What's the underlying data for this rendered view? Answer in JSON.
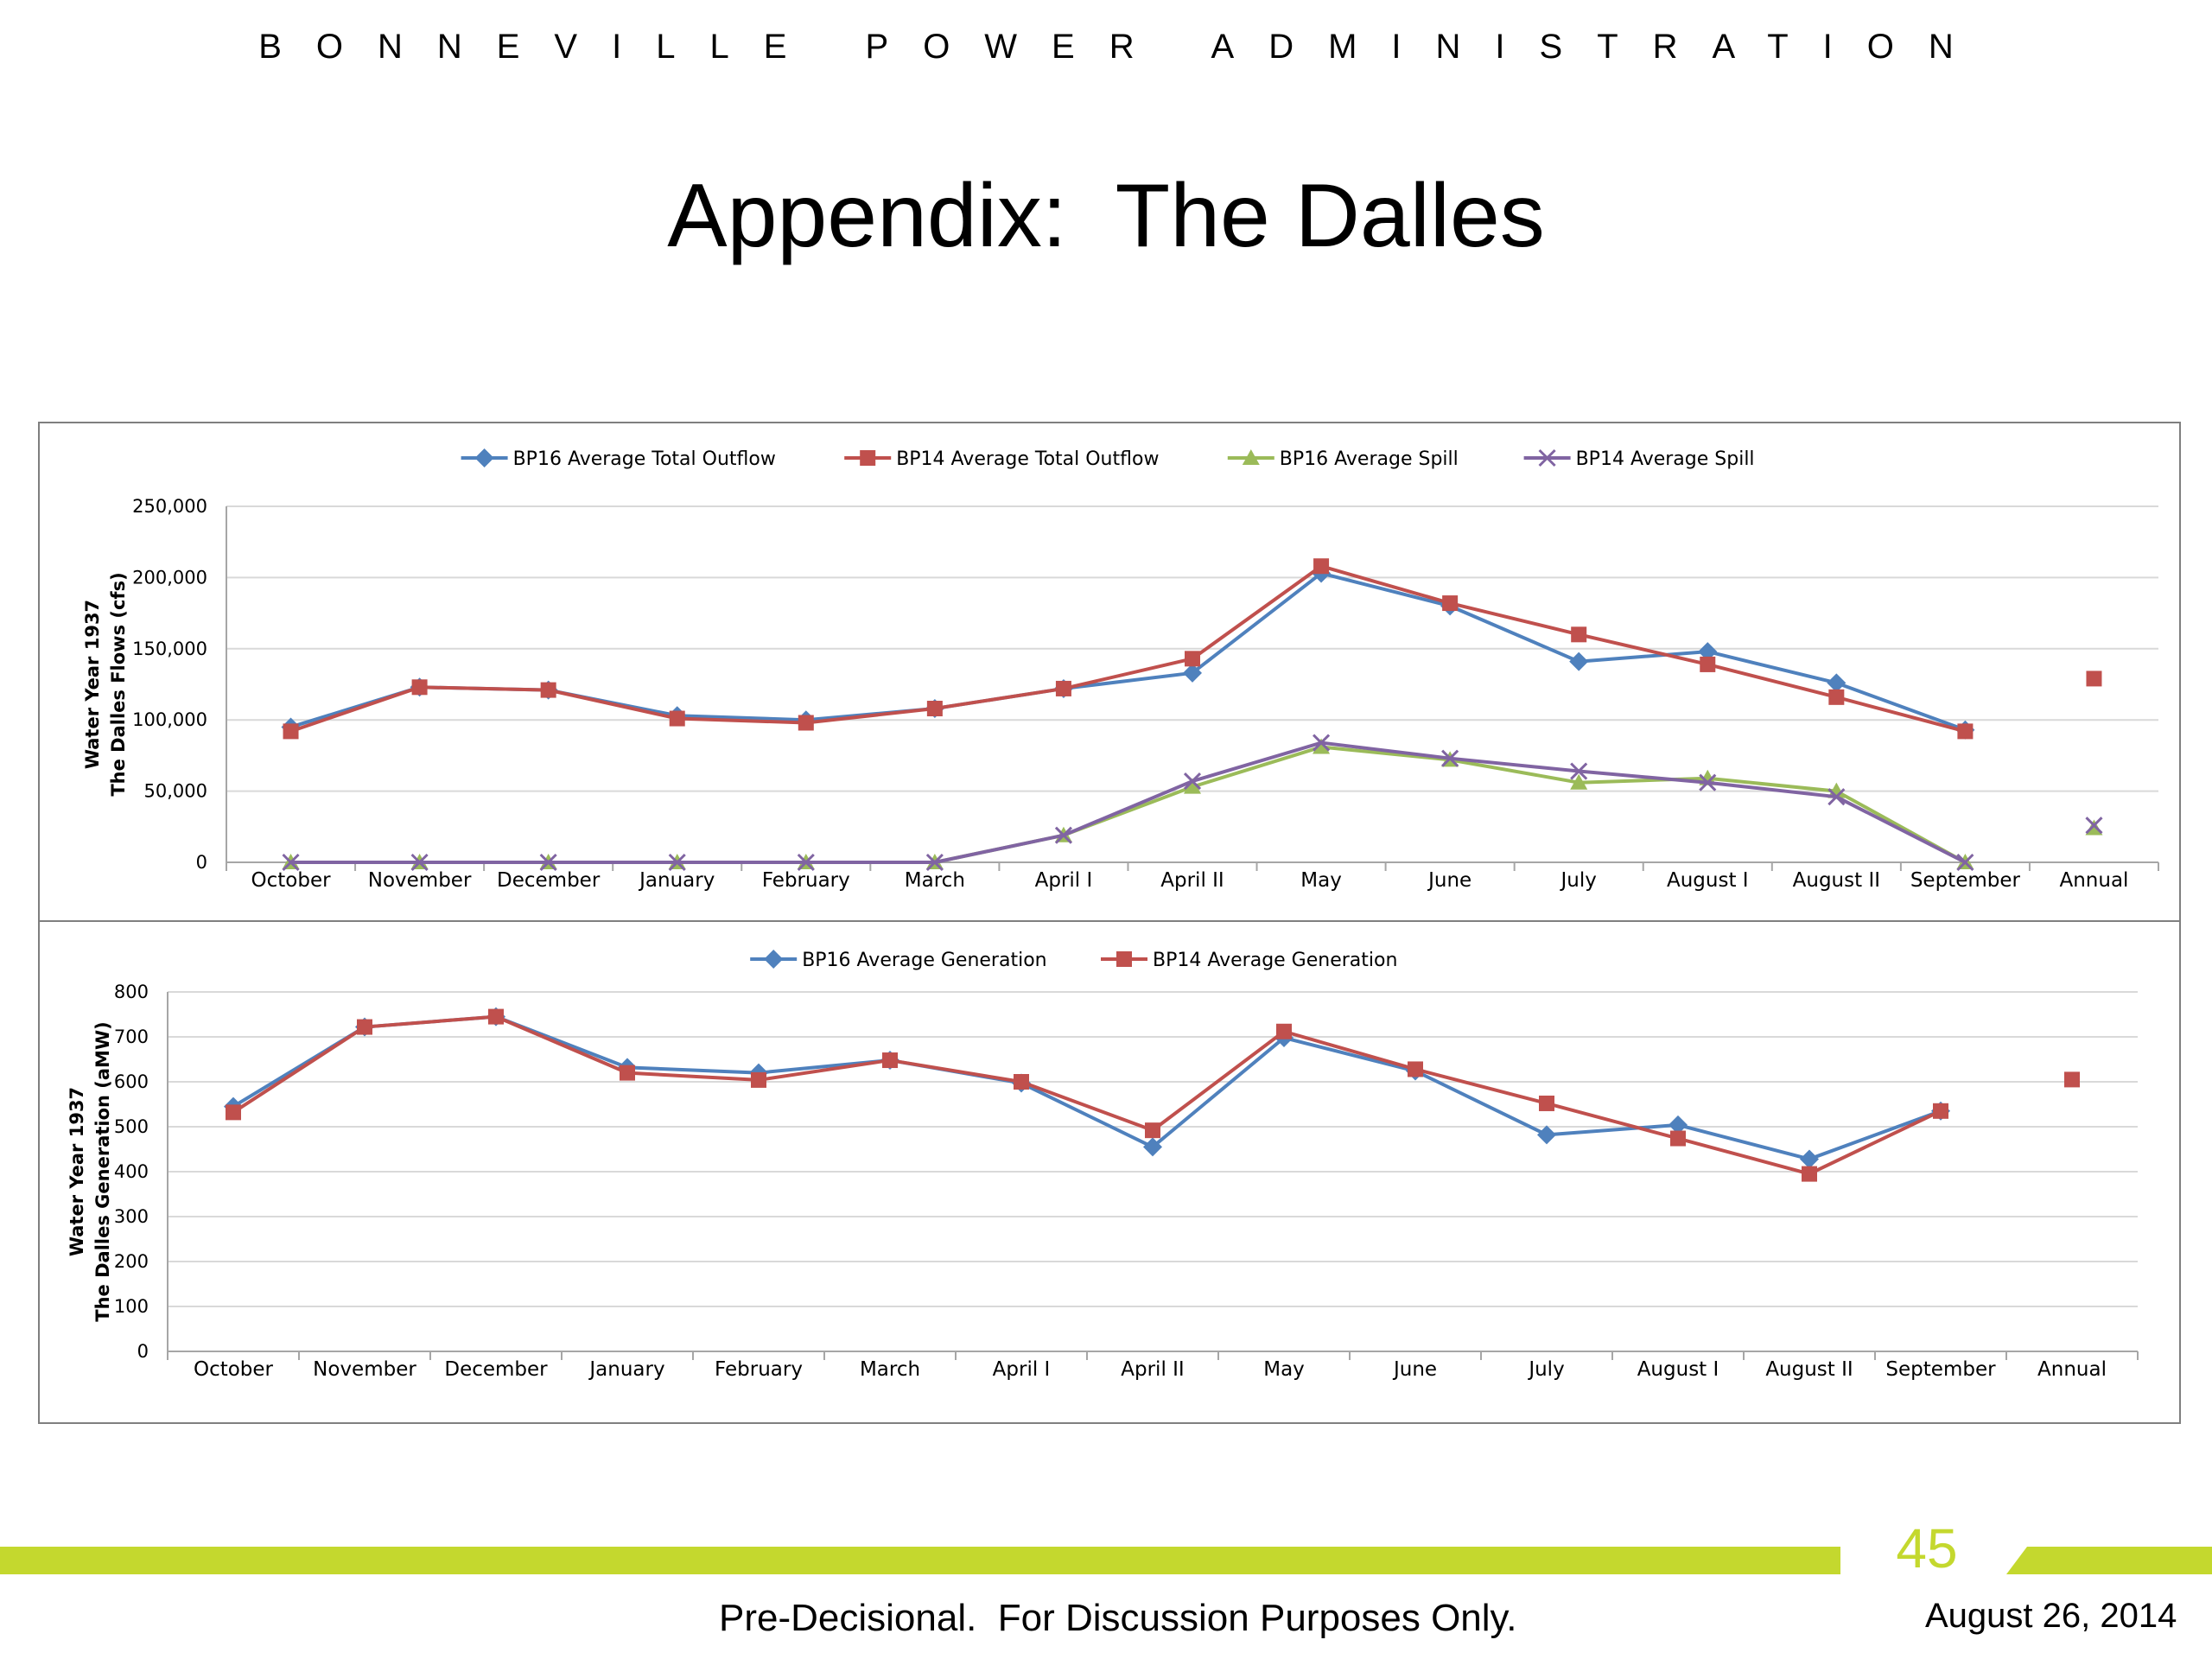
{
  "header": {
    "org": "BONNEVILLE POWER ADMINISTRATION",
    "title": "Appendix:  The Dalles"
  },
  "footer": {
    "page_number": "45",
    "disclaimer": "Pre-Decisional.  For Discussion Purposes Only.",
    "date": "August 26, 2014",
    "accent_color": "#c4d82e"
  },
  "chart_data": [
    {
      "type": "line",
      "ylabel_line1": "Water Year 1937",
      "ylabel_line2": "The Dalles Flows (cfs)",
      "ylim": [
        0,
        250000
      ],
      "yticks": [
        0,
        50000,
        100000,
        150000,
        200000,
        250000
      ],
      "ytick_labels": [
        "0",
        "50,000",
        "100,000",
        "150,000",
        "200,000",
        "250,000"
      ],
      "grid": true,
      "legend": "top-center",
      "categories": [
        "October",
        "November",
        "December",
        "January",
        "February",
        "March",
        "April I",
        "April II",
        "May",
        "June",
        "July",
        "August I",
        "August II",
        "September",
        "Annual"
      ],
      "series": [
        {
          "name": "BP16 Average Total Outflow",
          "color": "#4f81bd",
          "marker": "diamond",
          "values": [
            95000,
            123000,
            121000,
            103000,
            100000,
            108000,
            122000,
            133000,
            203000,
            180000,
            141000,
            148000,
            126000,
            93000,
            null
          ]
        },
        {
          "name": "BP14 Average Total Outflow",
          "color": "#c0504d",
          "marker": "square",
          "values": [
            92000,
            123000,
            121000,
            101000,
            98000,
            108000,
            122000,
            143000,
            208000,
            182000,
            160000,
            139000,
            116000,
            92000,
            129000
          ]
        },
        {
          "name": "BP16 Average Spill",
          "color": "#9bbb59",
          "marker": "triangle",
          "values": [
            0,
            0,
            0,
            0,
            0,
            0,
            19000,
            53000,
            81000,
            72000,
            56000,
            59000,
            50000,
            0,
            24000
          ]
        },
        {
          "name": "BP14 Average Spill",
          "color": "#8064a2",
          "marker": "x",
          "values": [
            0,
            0,
            0,
            0,
            0,
            0,
            19000,
            57000,
            84000,
            73000,
            64000,
            56000,
            46000,
            0,
            26000
          ]
        }
      ]
    },
    {
      "type": "line",
      "ylabel_line1": "Water Year 1937",
      "ylabel_line2": "The Dalles Generation (aMW)",
      "ylim": [
        0,
        800
      ],
      "yticks": [
        0,
        100,
        200,
        300,
        400,
        500,
        600,
        700,
        800
      ],
      "ytick_labels": [
        "0",
        "100",
        "200",
        "300",
        "400",
        "500",
        "600",
        "700",
        "800"
      ],
      "grid": true,
      "legend": "top-center",
      "categories": [
        "October",
        "November",
        "December",
        "January",
        "February",
        "March",
        "April I",
        "April II",
        "May",
        "June",
        "July",
        "August I",
        "August II",
        "September",
        "Annual"
      ],
      "series": [
        {
          "name": "BP16 Average Generation",
          "color": "#4f81bd",
          "marker": "diamond",
          "values": [
            545,
            722,
            745,
            632,
            620,
            648,
            597,
            455,
            698,
            624,
            482,
            504,
            428,
            535,
            null
          ]
        },
        {
          "name": "BP14 Average Generation",
          "color": "#c0504d",
          "marker": "square",
          "values": [
            532,
            722,
            745,
            620,
            604,
            648,
            600,
            492,
            712,
            628,
            552,
            474,
            395,
            535,
            605
          ]
        }
      ]
    }
  ]
}
